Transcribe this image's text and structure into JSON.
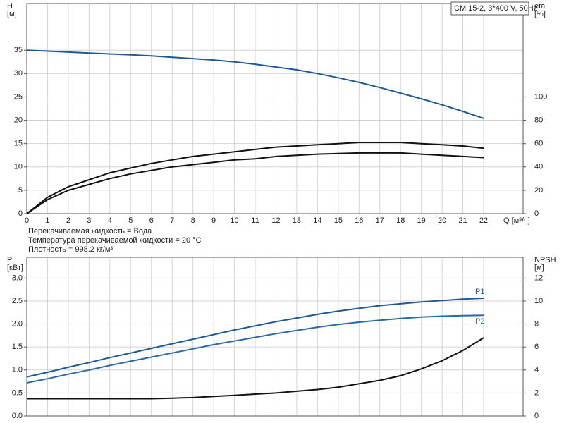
{
  "chart_data": [
    {
      "type": "line",
      "title": "CM 15-2, 3*400 V, 50Hz",
      "ylabel": "H",
      "yunit": "[м]",
      "y2label": "eta",
      "y2unit": "[%]",
      "xlabel": "Q [м³/ч]",
      "x": [
        0,
        1,
        2,
        3,
        4,
        5,
        6,
        7,
        8,
        9,
        10,
        11,
        12,
        13,
        14,
        15,
        16,
        17,
        18,
        19,
        20,
        21,
        22
      ],
      "xlim": [
        0,
        23.9
      ],
      "xticks": [
        0,
        1,
        2,
        3,
        4,
        5,
        6,
        7,
        8,
        9,
        10,
        11,
        12,
        13,
        14,
        15,
        16,
        17,
        18,
        19,
        20,
        21,
        22
      ],
      "ylim": [
        0,
        45
      ],
      "yticks": [
        0,
        5,
        10,
        15,
        20,
        25,
        30,
        35
      ],
      "y2lim": [
        0,
        180
      ],
      "y2ticks": [
        0,
        20,
        40,
        60,
        80,
        100
      ],
      "grid": true,
      "xtick_labels": true,
      "series": [
        {
          "color": "#1f5a96",
          "axis": "y",
          "values": [
            35,
            34.8,
            34.6,
            34.4,
            34.2,
            34.0,
            33.8,
            33.5,
            33.2,
            32.9,
            32.5,
            32.0,
            31.4,
            30.8,
            30.0,
            29.1,
            28.1,
            27.0,
            25.8,
            24.6,
            23.3,
            21.9,
            20.4
          ]
        },
        {
          "color": "#111111",
          "axis": "y2",
          "values": [
            0,
            14,
            23,
            29,
            35,
            39,
            43,
            46,
            49,
            51,
            53,
            55,
            57,
            58,
            59,
            60,
            61,
            61,
            61,
            60,
            59,
            58,
            56
          ]
        },
        {
          "color": "#111111",
          "axis": "y2",
          "values": [
            0,
            12,
            20,
            25,
            30,
            34,
            37,
            40,
            42,
            44,
            46,
            47,
            49,
            50,
            51,
            51.5,
            52,
            52,
            52,
            51,
            50,
            49,
            48
          ]
        }
      ],
      "notes": [
        "Перекачиваемая жидкость = Вода",
        "Температура перекачиваемой жидкости = 20 °C",
        "Плотность = 998.2 кг/м³"
      ]
    },
    {
      "type": "line",
      "ylabel": "P",
      "yunit": "[кВт]",
      "y2label": "NPSH",
      "y2unit": "[м]",
      "x": [
        0,
        1,
        2,
        3,
        4,
        5,
        6,
        7,
        8,
        9,
        10,
        11,
        12,
        13,
        14,
        15,
        16,
        17,
        18,
        19,
        20,
        21,
        22
      ],
      "xlim": [
        0,
        23.9
      ],
      "xticks": [
        0,
        1,
        2,
        3,
        4,
        5,
        6,
        7,
        8,
        9,
        10,
        11,
        12,
        13,
        14,
        15,
        16,
        17,
        18,
        19,
        20,
        21,
        22
      ],
      "ylim": [
        0,
        3.45
      ],
      "yticks": [
        {
          "value": 0,
          "label": "0.0"
        },
        0.5,
        {
          "value": 1,
          "label": "1.0"
        },
        1.5,
        {
          "value": 2,
          "label": "2.0"
        },
        2.5,
        {
          "value": 3,
          "label": "3.0"
        }
      ],
      "y2lim": [
        0,
        13.8
      ],
      "y2ticks": [
        0,
        2,
        4,
        6,
        8,
        10,
        12
      ],
      "grid": true,
      "xtick_labels": false,
      "series": [
        {
          "name": "P1",
          "color": "#1f5a96",
          "axis": "y",
          "values": [
            0.85,
            0.95,
            1.06,
            1.16,
            1.27,
            1.37,
            1.47,
            1.57,
            1.67,
            1.77,
            1.87,
            1.96,
            2.05,
            2.13,
            2.21,
            2.28,
            2.34,
            2.4,
            2.44,
            2.48,
            2.51,
            2.54,
            2.56
          ]
        },
        {
          "name": "P2",
          "color": "#2a6aa6",
          "axis": "y",
          "values": [
            0.72,
            0.81,
            0.91,
            1.0,
            1.1,
            1.19,
            1.28,
            1.37,
            1.46,
            1.55,
            1.63,
            1.71,
            1.79,
            1.86,
            1.93,
            1.99,
            2.04,
            2.08,
            2.12,
            2.15,
            2.17,
            2.18,
            2.19
          ]
        },
        {
          "color": "#111111",
          "axis": "y2",
          "values": [
            1.5,
            1.5,
            1.5,
            1.5,
            1.5,
            1.5,
            1.5,
            1.55,
            1.6,
            1.7,
            1.8,
            1.9,
            2.0,
            2.15,
            2.3,
            2.5,
            2.8,
            3.1,
            3.5,
            4.1,
            4.8,
            5.7,
            6.8
          ]
        }
      ]
    }
  ]
}
